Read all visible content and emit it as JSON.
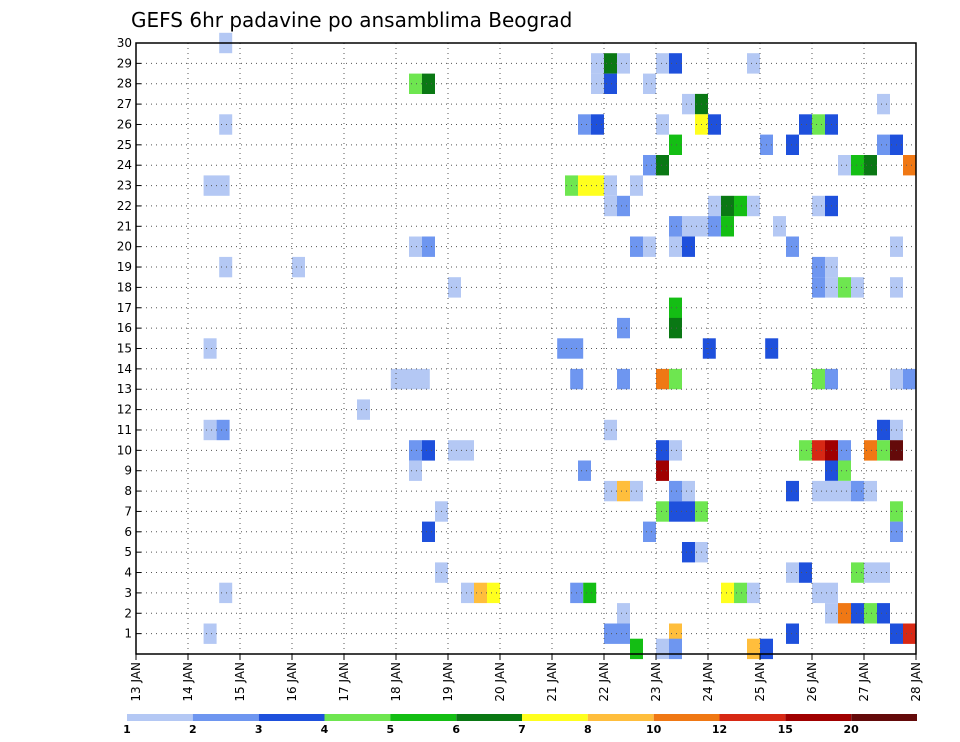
{
  "chart_data": {
    "type": "heatmap",
    "title": "GEFS 6hr padavine po ansamblima Beograd",
    "x_ticks": [
      "13 JAN",
      "14 JAN",
      "15 JAN",
      "16 JAN",
      "17 JAN",
      "18 JAN",
      "19 JAN",
      "20 JAN",
      "21 JAN",
      "22 JAN",
      "23 JAN",
      "24 JAN",
      "25 JAN",
      "26 JAN",
      "27 JAN",
      "28 JAN"
    ],
    "x_range_days": [
      13,
      28
    ],
    "y_ticks": [
      "1",
      "2",
      "3",
      "4",
      "5",
      "6",
      "7",
      "8",
      "9",
      "10",
      "11",
      "12",
      "13",
      "14",
      "15",
      "16",
      "17",
      "18",
      "19",
      "20",
      "21",
      "22",
      "23",
      "24",
      "25",
      "26",
      "27",
      "28",
      "29",
      "30"
    ],
    "y_range": [
      0,
      30
    ],
    "grid": true,
    "colorbar": {
      "labels": [
        "1",
        "2",
        "3",
        "4",
        "5",
        "6",
        "7",
        "8",
        "10",
        "12",
        "15",
        "20"
      ],
      "colors": [
        "#b4c8f4",
        "#6e96f0",
        "#1e50dc",
        "#6ee650",
        "#14be14",
        "#0a7814",
        "#ffff1e",
        "#ffbe3c",
        "#f07814",
        "#d72814",
        "#a00000",
        "#640a0a"
      ]
    },
    "cells": [
      {
        "x": 14.6,
        "w": 0.25,
        "m": 30,
        "c": 0
      },
      {
        "x": 21.75,
        "w": 0.25,
        "m": 29,
        "c": 0
      },
      {
        "x": 22.0,
        "w": 0.25,
        "m": 29,
        "c": 5
      },
      {
        "x": 22.25,
        "w": 0.25,
        "m": 29,
        "c": 0
      },
      {
        "x": 23.0,
        "w": 0.25,
        "m": 29,
        "c": 0
      },
      {
        "x": 23.25,
        "w": 0.25,
        "m": 29,
        "c": 2
      },
      {
        "x": 24.75,
        "w": 0.25,
        "m": 29,
        "c": 0
      },
      {
        "x": 18.25,
        "w": 0.25,
        "m": 28,
        "c": 3
      },
      {
        "x": 18.5,
        "w": 0.25,
        "m": 28,
        "c": 5
      },
      {
        "x": 21.75,
        "w": 0.25,
        "m": 28,
        "c": 0
      },
      {
        "x": 22.0,
        "w": 0.25,
        "m": 28,
        "c": 2
      },
      {
        "x": 22.75,
        "w": 0.25,
        "m": 28,
        "c": 0
      },
      {
        "x": 23.5,
        "w": 0.25,
        "m": 27,
        "c": 0
      },
      {
        "x": 23.75,
        "w": 0.25,
        "m": 27,
        "c": 5
      },
      {
        "x": 27.25,
        "w": 0.25,
        "m": 27,
        "c": 0
      },
      {
        "x": 14.6,
        "w": 0.25,
        "m": 26,
        "c": 0
      },
      {
        "x": 21.5,
        "w": 0.25,
        "m": 26,
        "c": 1
      },
      {
        "x": 21.75,
        "w": 0.25,
        "m": 26,
        "c": 2
      },
      {
        "x": 23.0,
        "w": 0.25,
        "m": 26,
        "c": 0
      },
      {
        "x": 23.75,
        "w": 0.25,
        "m": 26,
        "c": 6
      },
      {
        "x": 24.0,
        "w": 0.25,
        "m": 26,
        "c": 2
      },
      {
        "x": 25.75,
        "w": 0.25,
        "m": 26,
        "c": 2
      },
      {
        "x": 26.0,
        "w": 0.25,
        "m": 26,
        "c": 3
      },
      {
        "x": 26.25,
        "w": 0.25,
        "m": 26,
        "c": 2
      },
      {
        "x": 23.25,
        "w": 0.25,
        "m": 25,
        "c": 4
      },
      {
        "x": 25.0,
        "w": 0.25,
        "m": 25,
        "c": 1
      },
      {
        "x": 25.5,
        "w": 0.25,
        "m": 25,
        "c": 2
      },
      {
        "x": 27.25,
        "w": 0.25,
        "m": 25,
        "c": 1
      },
      {
        "x": 27.5,
        "w": 0.25,
        "m": 25,
        "c": 2
      },
      {
        "x": 22.75,
        "w": 0.25,
        "m": 24,
        "c": 1
      },
      {
        "x": 23.0,
        "w": 0.25,
        "m": 24,
        "c": 5
      },
      {
        "x": 26.5,
        "w": 0.25,
        "m": 24,
        "c": 0
      },
      {
        "x": 26.75,
        "w": 0.25,
        "m": 24,
        "c": 4
      },
      {
        "x": 27.0,
        "w": 0.25,
        "m": 24,
        "c": 5
      },
      {
        "x": 27.75,
        "w": 0.25,
        "m": 24,
        "c": 8
      },
      {
        "x": 14.3,
        "w": 0.5,
        "m": 23,
        "c": 0
      },
      {
        "x": 21.25,
        "w": 0.25,
        "m": 23,
        "c": 3
      },
      {
        "x": 21.5,
        "w": 0.5,
        "m": 23,
        "c": 6
      },
      {
        "x": 22.0,
        "w": 0.25,
        "m": 23,
        "c": 0
      },
      {
        "x": 22.5,
        "w": 0.25,
        "m": 23,
        "c": 0
      },
      {
        "x": 22.0,
        "w": 0.25,
        "m": 22,
        "c": 0
      },
      {
        "x": 22.25,
        "w": 0.25,
        "m": 22,
        "c": 1
      },
      {
        "x": 24.0,
        "w": 0.25,
        "m": 22,
        "c": 0
      },
      {
        "x": 24.25,
        "w": 0.25,
        "m": 22,
        "c": 5
      },
      {
        "x": 24.5,
        "w": 0.25,
        "m": 22,
        "c": 4
      },
      {
        "x": 24.75,
        "w": 0.25,
        "m": 22,
        "c": 0
      },
      {
        "x": 26.0,
        "w": 0.25,
        "m": 22,
        "c": 0
      },
      {
        "x": 26.25,
        "w": 0.25,
        "m": 22,
        "c": 2
      },
      {
        "x": 23.25,
        "w": 0.25,
        "m": 21,
        "c": 1
      },
      {
        "x": 23.5,
        "w": 0.5,
        "m": 21,
        "c": 0
      },
      {
        "x": 24.0,
        "w": 0.25,
        "m": 21,
        "c": 1
      },
      {
        "x": 24.25,
        "w": 0.25,
        "m": 21,
        "c": 4
      },
      {
        "x": 25.25,
        "w": 0.25,
        "m": 21,
        "c": 0
      },
      {
        "x": 18.25,
        "w": 0.25,
        "m": 20,
        "c": 0
      },
      {
        "x": 18.5,
        "w": 0.25,
        "m": 20,
        "c": 1
      },
      {
        "x": 22.5,
        "w": 0.25,
        "m": 20,
        "c": 1
      },
      {
        "x": 22.75,
        "w": 0.25,
        "m": 20,
        "c": 0
      },
      {
        "x": 23.25,
        "w": 0.25,
        "m": 20,
        "c": 0
      },
      {
        "x": 23.5,
        "w": 0.25,
        "m": 20,
        "c": 2
      },
      {
        "x": 25.5,
        "w": 0.25,
        "m": 20,
        "c": 1
      },
      {
        "x": 27.5,
        "w": 0.25,
        "m": 20,
        "c": 0
      },
      {
        "x": 14.6,
        "w": 0.25,
        "m": 19,
        "c": 0
      },
      {
        "x": 16.0,
        "w": 0.25,
        "m": 19,
        "c": 0
      },
      {
        "x": 26.0,
        "w": 0.25,
        "m": 19,
        "c": 1
      },
      {
        "x": 26.25,
        "w": 0.25,
        "m": 19,
        "c": 0
      },
      {
        "x": 26.0,
        "w": 0.25,
        "m": 18,
        "c": 1
      },
      {
        "x": 26.25,
        "w": 0.25,
        "m": 18,
        "c": 0
      },
      {
        "x": 19.0,
        "w": 0.25,
        "m": 18,
        "c": 0
      },
      {
        "x": 26.5,
        "w": 0.25,
        "m": 18,
        "c": 3
      },
      {
        "x": 26.75,
        "w": 0.25,
        "m": 18,
        "c": 0
      },
      {
        "x": 27.5,
        "w": 0.25,
        "m": 18,
        "c": 0
      },
      {
        "x": 23.25,
        "w": 0.25,
        "m": 17,
        "c": 4
      },
      {
        "x": 22.25,
        "w": 0.25,
        "m": 16,
        "c": 1
      },
      {
        "x": 23.25,
        "w": 0.25,
        "m": 16,
        "c": 5
      },
      {
        "x": 14.3,
        "w": 0.25,
        "m": 15,
        "c": 0
      },
      {
        "x": 21.1,
        "w": 0.5,
        "m": 15,
        "c": 1
      },
      {
        "x": 23.9,
        "w": 0.25,
        "m": 15,
        "c": 2
      },
      {
        "x": 25.1,
        "w": 0.25,
        "m": 15,
        "c": 2
      },
      {
        "x": 17.9,
        "w": 0.75,
        "m": 13.5,
        "c": 0
      },
      {
        "x": 21.35,
        "w": 0.25,
        "m": 13.5,
        "c": 1
      },
      {
        "x": 22.25,
        "w": 0.25,
        "m": 13.5,
        "c": 1
      },
      {
        "x": 23.0,
        "w": 0.25,
        "m": 13.5,
        "c": 8
      },
      {
        "x": 23.25,
        "w": 0.25,
        "m": 13.5,
        "c": 3
      },
      {
        "x": 26.0,
        "w": 0.25,
        "m": 13.5,
        "c": 3
      },
      {
        "x": 26.25,
        "w": 0.25,
        "m": 13.5,
        "c": 1
      },
      {
        "x": 27.5,
        "w": 0.25,
        "m": 13.5,
        "c": 0
      },
      {
        "x": 27.75,
        "w": 0.25,
        "m": 13.5,
        "c": 1
      },
      {
        "x": 17.25,
        "w": 0.25,
        "m": 12,
        "c": 0
      },
      {
        "x": 14.3,
        "w": 0.25,
        "m": 11,
        "c": 0
      },
      {
        "x": 14.55,
        "w": 0.25,
        "m": 11,
        "c": 1
      },
      {
        "x": 22.0,
        "w": 0.25,
        "m": 11,
        "c": 0
      },
      {
        "x": 27.25,
        "w": 0.25,
        "m": 11,
        "c": 2
      },
      {
        "x": 27.5,
        "w": 0.25,
        "m": 11,
        "c": 0
      },
      {
        "x": 18.25,
        "w": 0.25,
        "m": 10,
        "c": 1
      },
      {
        "x": 18.5,
        "w": 0.25,
        "m": 10,
        "c": 2
      },
      {
        "x": 19.0,
        "w": 0.5,
        "m": 10,
        "c": 0
      },
      {
        "x": 23.0,
        "w": 0.25,
        "m": 10,
        "c": 2
      },
      {
        "x": 23.25,
        "w": 0.25,
        "m": 10,
        "c": 0
      },
      {
        "x": 25.75,
        "w": 0.25,
        "m": 10,
        "c": 3
      },
      {
        "x": 26.0,
        "w": 0.25,
        "m": 10,
        "c": 9
      },
      {
        "x": 26.25,
        "w": 0.25,
        "m": 10,
        "c": 10
      },
      {
        "x": 26.5,
        "w": 0.25,
        "m": 10,
        "c": 1
      },
      {
        "x": 27.0,
        "w": 0.25,
        "m": 10,
        "c": 8
      },
      {
        "x": 27.25,
        "w": 0.25,
        "m": 10,
        "c": 3
      },
      {
        "x": 27.5,
        "w": 0.25,
        "m": 10,
        "c": 11
      },
      {
        "x": 18.25,
        "w": 0.25,
        "m": 9,
        "c": 0
      },
      {
        "x": 21.5,
        "w": 0.25,
        "m": 9,
        "c": 1
      },
      {
        "x": 23.0,
        "w": 0.25,
        "m": 9,
        "c": 10
      },
      {
        "x": 26.25,
        "w": 0.25,
        "m": 9,
        "c": 2
      },
      {
        "x": 26.5,
        "w": 0.25,
        "m": 9,
        "c": 3
      },
      {
        "x": 22.0,
        "w": 0.25,
        "m": 8,
        "c": 0
      },
      {
        "x": 22.25,
        "w": 0.25,
        "m": 8,
        "c": 7
      },
      {
        "x": 22.5,
        "w": 0.25,
        "m": 8,
        "c": 0
      },
      {
        "x": 23.25,
        "w": 0.25,
        "m": 8,
        "c": 1
      },
      {
        "x": 23.5,
        "w": 0.25,
        "m": 8,
        "c": 0
      },
      {
        "x": 25.5,
        "w": 0.25,
        "m": 8,
        "c": 2
      },
      {
        "x": 26.0,
        "w": 0.75,
        "m": 8,
        "c": 0
      },
      {
        "x": 26.75,
        "w": 0.25,
        "m": 8,
        "c": 1
      },
      {
        "x": 27.0,
        "w": 0.25,
        "m": 8,
        "c": 0
      },
      {
        "x": 18.75,
        "w": 0.25,
        "m": 7,
        "c": 0
      },
      {
        "x": 23.0,
        "w": 0.25,
        "m": 7,
        "c": 3
      },
      {
        "x": 23.25,
        "w": 0.5,
        "m": 7,
        "c": 2
      },
      {
        "x": 23.75,
        "w": 0.25,
        "m": 7,
        "c": 3
      },
      {
        "x": 27.5,
        "w": 0.25,
        "m": 7,
        "c": 3
      },
      {
        "x": 18.5,
        "w": 0.25,
        "m": 6,
        "c": 2
      },
      {
        "x": 22.75,
        "w": 0.25,
        "m": 6,
        "c": 1
      },
      {
        "x": 27.5,
        "w": 0.25,
        "m": 6,
        "c": 1
      },
      {
        "x": 23.5,
        "w": 0.25,
        "m": 5,
        "c": 2
      },
      {
        "x": 23.75,
        "w": 0.25,
        "m": 5,
        "c": 0
      },
      {
        "x": 18.75,
        "w": 0.25,
        "m": 4,
        "c": 0
      },
      {
        "x": 25.5,
        "w": 0.25,
        "m": 4,
        "c": 0
      },
      {
        "x": 25.75,
        "w": 0.25,
        "m": 4,
        "c": 2
      },
      {
        "x": 26.75,
        "w": 0.25,
        "m": 4,
        "c": 3
      },
      {
        "x": 27.0,
        "w": 0.5,
        "m": 4,
        "c": 0
      },
      {
        "x": 14.6,
        "w": 0.25,
        "m": 3,
        "c": 0
      },
      {
        "x": 19.25,
        "w": 0.25,
        "m": 3,
        "c": 0
      },
      {
        "x": 19.5,
        "w": 0.25,
        "m": 3,
        "c": 7
      },
      {
        "x": 19.75,
        "w": 0.25,
        "m": 3,
        "c": 6
      },
      {
        "x": 21.35,
        "w": 0.25,
        "m": 3,
        "c": 1
      },
      {
        "x": 21.6,
        "w": 0.25,
        "m": 3,
        "c": 4
      },
      {
        "x": 24.25,
        "w": 0.25,
        "m": 3,
        "c": 6
      },
      {
        "x": 24.5,
        "w": 0.25,
        "m": 3,
        "c": 3
      },
      {
        "x": 24.75,
        "w": 0.25,
        "m": 3,
        "c": 0
      },
      {
        "x": 26.0,
        "w": 0.5,
        "m": 3,
        "c": 0
      },
      {
        "x": 22.25,
        "w": 0.25,
        "m": 2,
        "c": 0
      },
      {
        "x": 26.25,
        "w": 0.25,
        "m": 2,
        "c": 0
      },
      {
        "x": 26.5,
        "w": 0.25,
        "m": 2,
        "c": 8
      },
      {
        "x": 26.75,
        "w": 0.25,
        "m": 2,
        "c": 2
      },
      {
        "x": 27.0,
        "w": 0.25,
        "m": 2,
        "c": 3
      },
      {
        "x": 27.25,
        "w": 0.25,
        "m": 2,
        "c": 2
      },
      {
        "x": 14.3,
        "w": 0.25,
        "m": 1,
        "c": 0
      },
      {
        "x": 22.0,
        "w": 0.5,
        "m": 1,
        "c": 1
      },
      {
        "x": 23.25,
        "w": 0.25,
        "m": 1,
        "c": 7
      },
      {
        "x": 25.5,
        "w": 0.25,
        "m": 1,
        "c": 2
      },
      {
        "x": 27.5,
        "w": 0.25,
        "m": 1,
        "c": 2
      },
      {
        "x": 27.75,
        "w": 0.25,
        "m": 1,
        "c": 9
      },
      {
        "x": 22.5,
        "w": 0.25,
        "m": 0.25,
        "c": 4
      },
      {
        "x": 23.0,
        "w": 0.25,
        "m": 0.25,
        "c": 0
      },
      {
        "x": 23.25,
        "w": 0.25,
        "m": 0.25,
        "c": 1
      },
      {
        "x": 24.75,
        "w": 0.25,
        "m": 0.25,
        "c": 7
      },
      {
        "x": 25.0,
        "w": 0.25,
        "m": 0.25,
        "c": 2
      }
    ]
  }
}
